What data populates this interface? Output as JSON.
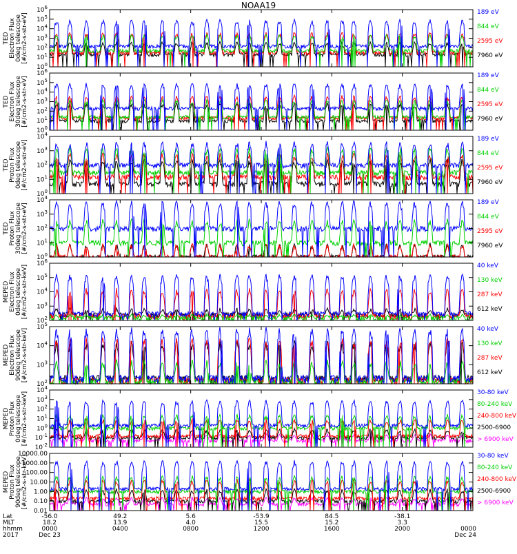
{
  "title": "NOAA19",
  "colors": {
    "blue": "#0000ff",
    "red": "#ff0000",
    "green": "#00d000",
    "black": "#000000",
    "magenta": "#ff00ff"
  },
  "chart_data": [
    {
      "type": "line",
      "ylabel": [
        "TED",
        "Electron Flux",
        "0deg telescope",
        "[#/cm2-s-str-eV]"
      ],
      "yscale": "log",
      "yticks": [
        {
          "value": 1,
          "label": "10^0"
        },
        {
          "value": 10,
          "label": "10^1"
        },
        {
          "value": 100,
          "label": "10^2"
        },
        {
          "value": 1000,
          "label": "10^3"
        },
        {
          "value": 10000,
          "label": "10^4"
        },
        {
          "value": 100000,
          "label": "10^5"
        },
        {
          "value": 1000000,
          "label": "10^6"
        }
      ],
      "series": [
        {
          "name": "7960 eV",
          "color": "black",
          "base": 20,
          "peak": 500
        },
        {
          "name": "2595 eV",
          "color": "red",
          "base": 30,
          "peak": 5000
        },
        {
          "name": "844 eV",
          "color": "green",
          "base": 50,
          "peak": 3000
        },
        {
          "name": "189 eV",
          "color": "blue",
          "base": 150,
          "peak": 100000
        }
      ]
    },
    {
      "type": "line",
      "ylabel": [
        "TED",
        "Electron Flux",
        "30deg telescope",
        "[#/cm2-s-str-eV]"
      ],
      "yscale": "log",
      "yticks": [
        {
          "value": 1,
          "label": "10^0"
        },
        {
          "value": 10,
          "label": "10^1"
        },
        {
          "value": 100,
          "label": "10^2"
        },
        {
          "value": 1000,
          "label": "10^3"
        },
        {
          "value": 10000,
          "label": "10^4"
        },
        {
          "value": 100000,
          "label": "10^5"
        },
        {
          "value": 1000000,
          "label": "10^6"
        }
      ],
      "series": [
        {
          "name": "7960 eV",
          "color": "black",
          "base": 10,
          "peak": 800
        },
        {
          "name": "2595 eV",
          "color": "red",
          "base": 20,
          "peak": 5000
        },
        {
          "name": "844 eV",
          "color": "green",
          "base": 25,
          "peak": 2000
        },
        {
          "name": "189 eV",
          "color": "blue",
          "base": 200,
          "peak": 100000
        }
      ]
    },
    {
      "type": "line",
      "ylabel": [
        "TED",
        "Proton Flux",
        "0deg telescope",
        "[#/cm2-s-str-eV]"
      ],
      "yscale": "log",
      "yticks": [
        {
          "value": 1,
          "label": "10^0"
        },
        {
          "value": 10,
          "label": "10^1"
        },
        {
          "value": 100,
          "label": "10^2"
        },
        {
          "value": 1000,
          "label": "10^3"
        },
        {
          "value": 10000,
          "label": "10^4"
        }
      ],
      "series": [
        {
          "name": "7960 eV",
          "color": "black",
          "base": 5,
          "peak": 300
        },
        {
          "name": "2595 eV",
          "color": "red",
          "base": 15,
          "peak": 800
        },
        {
          "name": "844 eV",
          "color": "green",
          "base": 30,
          "peak": 2000
        },
        {
          "name": "189 eV",
          "color": "blue",
          "base": 100,
          "peak": 5000
        }
      ]
    },
    {
      "type": "line",
      "ylabel": [
        "TED",
        "Proton Flux",
        "30deg telescope",
        "[#/cm2-s-str-eV]"
      ],
      "yscale": "log",
      "yticks": [
        {
          "value": 1,
          "label": "10^0"
        },
        {
          "value": 10,
          "label": "10^1"
        },
        {
          "value": 100,
          "label": "10^2"
        },
        {
          "value": 1000,
          "label": "10^3"
        },
        {
          "value": 10000,
          "label": "10^4"
        }
      ],
      "series": [
        {
          "name": "7960 eV",
          "color": "black",
          "base": 1,
          "peak": 10
        },
        {
          "name": "2595 eV",
          "color": "red",
          "base": 1,
          "peak": 10
        },
        {
          "name": "844 eV",
          "color": "green",
          "base": 10,
          "peak": 500
        },
        {
          "name": "189 eV",
          "color": "blue",
          "base": 100,
          "peak": 10000
        }
      ]
    },
    {
      "type": "line",
      "ylabel": [
        "MEPED",
        "Electron Flux",
        "0deg telescope",
        "[#/cm2-s-str-keV]"
      ],
      "yscale": "log",
      "yticks": [
        {
          "value": 100,
          "label": "10^2"
        },
        {
          "value": 1000,
          "label": "10^3"
        },
        {
          "value": 10000,
          "label": "10^4"
        },
        {
          "value": 100000,
          "label": "10^5"
        },
        {
          "value": 1000000,
          "label": "10^6"
        }
      ],
      "series": [
        {
          "name": "612 keV",
          "color": "black",
          "base": 250,
          "peak": 800
        },
        {
          "name": "287 keV",
          "color": "red",
          "base": 200,
          "peak": 20000
        },
        {
          "name": "130 keV",
          "color": "green",
          "base": 150,
          "peak": 300
        },
        {
          "name": "40 keV",
          "color": "blue",
          "base": 300,
          "peak": 200000
        }
      ]
    },
    {
      "type": "line",
      "ylabel": [
        "MEPED",
        "Electron Flux",
        "90deg telescope",
        "[#/cm2-s-str-keV]"
      ],
      "yscale": "log",
      "yticks": [
        {
          "value": 100,
          "label": "10^2"
        },
        {
          "value": 1000,
          "label": "10^3"
        },
        {
          "value": 10000,
          "label": "10^4"
        },
        {
          "value": 100000,
          "label": "10^5"
        }
      ],
      "series": [
        {
          "name": "612 keV",
          "color": "black",
          "base": 200,
          "peak": 20000
        },
        {
          "name": "287 keV",
          "color": "red",
          "base": 150,
          "peak": 30000
        },
        {
          "name": "130 keV",
          "color": "green",
          "base": 130,
          "peak": 2000
        },
        {
          "name": "40 keV",
          "color": "blue",
          "base": 200,
          "peak": 100000
        }
      ]
    },
    {
      "type": "line",
      "ylabel": [
        "MEPED",
        "Proton Flux",
        "0deg telescope",
        "[#/cm2-s-str-keV]"
      ],
      "yscale": "log",
      "yticks": [
        {
          "value": 0.01,
          "label": "10^-2"
        },
        {
          "value": 0.1,
          "label": "10^-1"
        },
        {
          "value": 1,
          "label": "10^0"
        },
        {
          "value": 10,
          "label": "10^1"
        },
        {
          "value": 100,
          "label": "10^2"
        },
        {
          "value": 1000,
          "label": "10^3"
        },
        {
          "value": 10000,
          "label": "10^4"
        }
      ],
      "series": [
        {
          "name": "> 6900 keV",
          "color": "magenta",
          "base": 0.05,
          "peak": 0.3
        },
        {
          "name": "2500-6900",
          "color": "black",
          "base": 0.1,
          "peak": 1
        },
        {
          "name": "240-800 keV",
          "color": "red",
          "base": 0.15,
          "peak": 10
        },
        {
          "name": "80-240 keV",
          "color": "green",
          "base": 1,
          "peak": 30
        },
        {
          "name": "30-80 keV",
          "color": "blue",
          "base": 2,
          "peak": 1000
        }
      ]
    },
    {
      "type": "line",
      "ylabel": [
        "MEPED",
        "Proton Flux",
        "90deg telescope",
        "[#/cm2-s-str-keV]"
      ],
      "yscale": "log",
      "yticks": [
        {
          "value": 0.01,
          "label": "0.01"
        },
        {
          "value": 0.1,
          "label": "0.10"
        },
        {
          "value": 1,
          "label": "1.00"
        },
        {
          "value": 10,
          "label": "10.00"
        },
        {
          "value": 100,
          "label": "100.00"
        },
        {
          "value": 1000,
          "label": "1000.00"
        },
        {
          "value": 10000,
          "label": "10000.00"
        }
      ],
      "series": [
        {
          "name": "> 6900 keV",
          "color": "magenta",
          "base": 0.05,
          "peak": 0.3
        },
        {
          "name": "2500-6900",
          "color": "black",
          "base": 0.1,
          "peak": 2
        },
        {
          "name": "240-800 keV",
          "color": "red",
          "base": 0.2,
          "peak": 20
        },
        {
          "name": "80-240 keV",
          "color": "green",
          "base": 1,
          "peak": 50
        },
        {
          "name": "30-80 keV",
          "color": "blue",
          "base": 2,
          "peak": 2000
        }
      ]
    }
  ],
  "time_axis": {
    "row_labels": [
      "Lat",
      "MLT",
      "hhmm",
      "2017"
    ],
    "ticks": [
      {
        "hour": 0,
        "lat": "-56.0",
        "mlt": "18.2",
        "hhmm": "0000",
        "date": "Dec 23"
      },
      {
        "hour": 4,
        "lat": "49.2",
        "mlt": "13.9",
        "hhmm": "0400",
        "date": ""
      },
      {
        "hour": 8,
        "lat": "5.6",
        "mlt": "4.0",
        "hhmm": "0800",
        "date": ""
      },
      {
        "hour": 12,
        "lat": "-53.9",
        "mlt": "15.5",
        "hhmm": "1200",
        "date": ""
      },
      {
        "hour": 16,
        "lat": "84.5",
        "mlt": "15.2",
        "hhmm": "1600",
        "date": ""
      },
      {
        "hour": 20,
        "lat": "-38.1",
        "mlt": "3.3",
        "hhmm": "2000",
        "date": ""
      },
      {
        "hour": 24,
        "lat": "",
        "mlt": "",
        "hhmm": "0000",
        "date": "Dec 24"
      }
    ]
  }
}
